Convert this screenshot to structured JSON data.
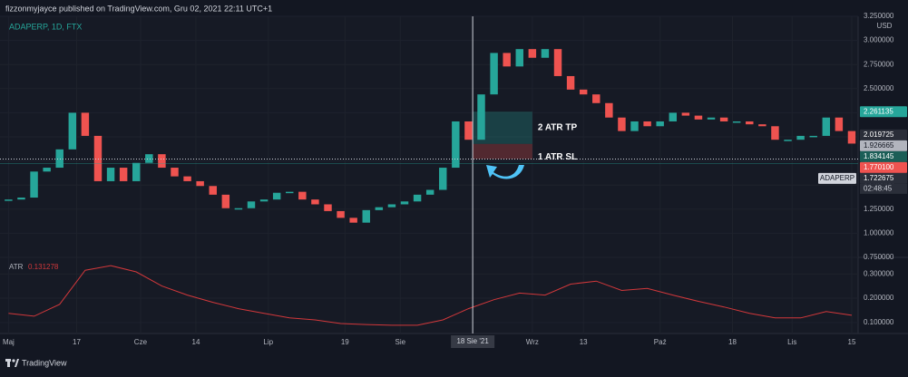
{
  "header": {
    "text": "fizzonmyjayce published on TradingView.com, Gru 02, 2021 22:11 UTC+1"
  },
  "footer": {
    "brand": "TradingView"
  },
  "chart_data": {
    "type": "candlestick",
    "symbol_label": "ADAPERP, 1D, FTX",
    "currency": "USD",
    "x": [
      0,
      3,
      6,
      9,
      12,
      15,
      18,
      21,
      24,
      27,
      30,
      33,
      36,
      39,
      42,
      45,
      48,
      51,
      54,
      57,
      60,
      63,
      66,
      69,
      72,
      75,
      78,
      81,
      84,
      87,
      90,
      93,
      96,
      99,
      102,
      105,
      108,
      111,
      114,
      117,
      120,
      123,
      126,
      129,
      132,
      135,
      138,
      141,
      144,
      147,
      150,
      153,
      156,
      159,
      162,
      165,
      168,
      171,
      174,
      177,
      180,
      183,
      186,
      189,
      192,
      195,
      198
    ],
    "series": [
      {
        "name": "ADAPERP",
        "color_up": "#26a69a",
        "color_down": "#ef5350",
        "values": [
          1.35,
          1.37,
          1.64,
          1.68,
          1.87,
          2.25,
          2.01,
          1.54,
          1.68,
          1.54,
          1.73,
          1.82,
          1.68,
          1.59,
          1.54,
          1.49,
          1.4,
          1.26,
          1.26,
          1.33,
          1.35,
          1.42,
          1.43,
          1.35,
          1.3,
          1.23,
          1.16,
          1.11,
          1.24,
          1.27,
          1.3,
          1.33,
          1.4,
          1.45,
          1.68,
          2.16,
          1.97,
          2.44,
          2.87,
          2.73,
          2.91,
          2.82,
          2.91,
          2.63,
          2.49,
          2.44,
          2.35,
          2.2,
          2.06,
          2.16,
          2.11,
          2.16,
          2.25,
          2.22,
          2.18,
          2.2,
          2.16,
          2.16,
          2.13,
          2.11,
          1.97,
          1.97,
          2.01,
          2.01,
          2.2,
          2.06,
          1.93
        ]
      }
    ],
    "xlim": [
      -2,
      199.5
    ],
    "xticks": [
      {
        "value": 0,
        "label": "Maj"
      },
      {
        "value": 16,
        "label": "17"
      },
      {
        "value": 31,
        "label": "Cze"
      },
      {
        "value": 44,
        "label": "14"
      },
      {
        "value": 61,
        "label": "Lip"
      },
      {
        "value": 79,
        "label": "19"
      },
      {
        "value": 92,
        "label": "Sie"
      },
      {
        "value": 123,
        "label": "Wrz"
      },
      {
        "value": 135,
        "label": "13"
      },
      {
        "value": 153,
        "label": "Paź"
      },
      {
        "value": 170,
        "label": "18"
      },
      {
        "value": 184,
        "label": "Lis"
      },
      {
        "value": 198,
        "label": "15"
      }
    ],
    "crosshair_x": {
      "value": 109,
      "label": "18 Sie '21"
    },
    "ylim": [
      0.75,
      3.25
    ],
    "yticks": [
      {
        "value": 0.75,
        "label": "0.750000"
      },
      {
        "value": 1.0,
        "label": "1.000000"
      },
      {
        "value": 1.25,
        "label": "1.250000"
      },
      {
        "value": 1.5,
        "label": "1.500000"
      },
      {
        "value": 1.75,
        "label": "1.750000"
      },
      {
        "value": 2.0,
        "label": "2.000000"
      },
      {
        "value": 2.25,
        "label": "2.250000"
      },
      {
        "value": 2.5,
        "label": "2.500000"
      },
      {
        "value": 2.75,
        "label": "2.750000"
      },
      {
        "value": 3.0,
        "label": "3.000000"
      },
      {
        "value": 3.25,
        "label": "3.250000"
      }
    ],
    "price_labels": [
      {
        "value": 2.261135,
        "color": "#26a69a"
      },
      {
        "value": 2.019725,
        "color": "#2a2e39"
      },
      {
        "value": 1.926665,
        "color": "#b2b5be"
      },
      {
        "value": 1.834145,
        "color": "#1b5e57"
      },
      {
        "value": {
          "value": 1.7701,
          "label": "1.770100"
        },
        "color": "#ef5350"
      },
      {
        "value": 1.722675,
        "color": "#2a2e39",
        "tag": "ADAPERP",
        "countdown": "02:48:45"
      }
    ],
    "position": {
      "x_start": 109,
      "x_end": 123,
      "tp": 2.261135,
      "entry": 1.926665,
      "sl": {
        "value": 1.7701,
        "label": "1.770100"
      },
      "tp_label": "2 ATR TP",
      "sl_label": "1 ATR SL"
    },
    "atr": {
      "name": "ATR",
      "value_label": 0.131278,
      "color": "#d2383b",
      "x": [
        0,
        6,
        12,
        18,
        24,
        30,
        36,
        42,
        48,
        54,
        60,
        66,
        72,
        78,
        84,
        90,
        96,
        102,
        108,
        114,
        120,
        126,
        132,
        138,
        144,
        150,
        156,
        162,
        168,
        174,
        180,
        186,
        192,
        198
      ],
      "values": [
        0.138,
        0.126,
        0.175,
        0.315,
        0.334,
        0.308,
        0.25,
        0.213,
        0.183,
        0.157,
        0.138,
        0.119,
        0.111,
        0.096,
        0.092,
        0.089,
        0.089,
        0.111,
        0.157,
        0.194,
        0.221,
        0.213,
        0.258,
        0.27,
        0.232,
        0.24,
        0.213,
        0.187,
        0.164,
        0.138,
        0.119,
        0.119,
        0.145,
        0.13
      ],
      "ylim": [
        0.055,
        0.364
      ],
      "yticks": [
        {
          "value": 0.1,
          "label": "0.100000"
        },
        {
          "value": 0.2,
          "label": "0.200000"
        },
        {
          "value": 0.3,
          "label": "0.300000"
        }
      ]
    }
  }
}
